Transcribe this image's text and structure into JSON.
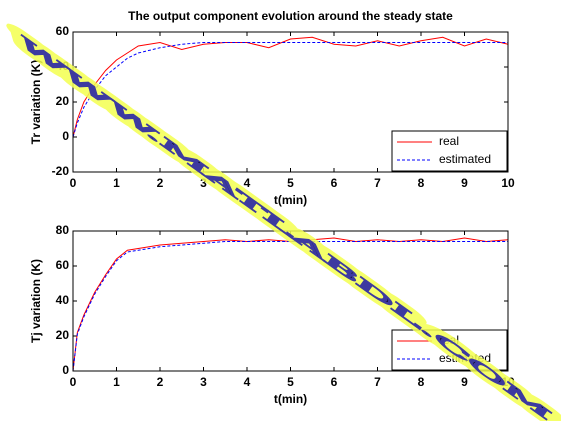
{
  "chart_data": [
    {
      "type": "line",
      "title": "The output component evolution around the steady state",
      "x_label": "t(min)",
      "y_label": "Tr variation (K)",
      "x": [
        0,
        0.1,
        0.25,
        0.5,
        0.75,
        1,
        1.25,
        1.5,
        2,
        2.5,
        3,
        3.5,
        4,
        4.5,
        5,
        5.5,
        6,
        6.5,
        7,
        7.5,
        8,
        8.5,
        9,
        9.5,
        10
      ],
      "series": [
        {
          "name": "real",
          "color": "#ff0000",
          "dash": false,
          "values": [
            0,
            10,
            20,
            30,
            38,
            44,
            48,
            52,
            54,
            50,
            53,
            54,
            54,
            51,
            56,
            57,
            53,
            52,
            55,
            52,
            55,
            57,
            52,
            56,
            53
          ]
        },
        {
          "name": "estimated",
          "color": "#0000ff",
          "dash": true,
          "values": [
            0,
            8,
            17,
            27,
            35,
            40,
            45,
            48,
            51,
            53,
            54,
            54,
            54,
            54,
            54,
            54,
            54,
            54,
            54,
            54,
            54,
            54,
            54,
            54,
            54
          ]
        }
      ],
      "xlim": [
        0,
        10
      ],
      "ylim": [
        -20,
        60
      ],
      "xticks": [
        0,
        1,
        2,
        3,
        4,
        5,
        6,
        7,
        8,
        9,
        10
      ],
      "yticks": [
        -20,
        0,
        20,
        40,
        60
      ],
      "legend": "lower right"
    },
    {
      "type": "line",
      "x_label": "t(min)",
      "y_label": "Tj variation (K)",
      "x": [
        0,
        0.1,
        0.25,
        0.5,
        0.75,
        1,
        1.25,
        1.5,
        2,
        2.5,
        3,
        3.5,
        4,
        4.5,
        5,
        5.5,
        6,
        6.5,
        7,
        7.5,
        8,
        8.5,
        9,
        9.5,
        10
      ],
      "series": [
        {
          "name": "real",
          "color": "#ff0000",
          "dash": false,
          "values": [
            0,
            22,
            32,
            45,
            55,
            64,
            69,
            70,
            72,
            73,
            74,
            75,
            74,
            75,
            74,
            75,
            76,
            74,
            75,
            74,
            75,
            74,
            76,
            74,
            75
          ]
        },
        {
          "name": "estimated",
          "color": "#0000ff",
          "dash": true,
          "values": [
            0,
            21,
            31,
            44,
            54,
            63,
            68,
            69,
            71,
            72,
            73,
            74,
            74,
            74,
            74,
            74,
            74,
            74,
            74,
            74,
            74,
            74,
            74,
            74,
            74
          ]
        }
      ],
      "xlim": [
        0,
        10
      ],
      "ylim": [
        0,
        80
      ],
      "xticks": [
        0,
        1,
        2,
        3,
        4,
        5,
        6,
        7,
        8,
        9,
        10
      ],
      "yticks": [
        0,
        20,
        40,
        60,
        80
      ],
      "legend": "lower right"
    }
  ],
  "watermark": "WWW.MATLABDL.COM"
}
